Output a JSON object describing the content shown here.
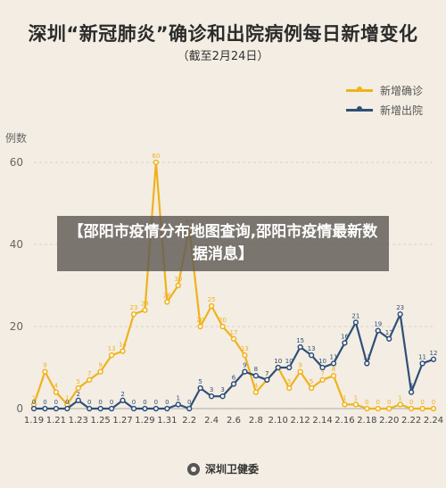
{
  "header": {
    "title": "深圳“新冠肺炎”确诊和出院病例每日新增变化",
    "subtitle": "（截至2月24日）"
  },
  "banner": {
    "text": "【邵阳市疫情分布地图查询,邵阳市疫情最新数据消息】"
  },
  "footer": {
    "source": "深圳卫健委",
    "logo_icon": "shenzhen-health-logo-icon"
  },
  "chart_data": {
    "type": "line",
    "title": "深圳“新冠肺炎”确诊和出院病例每日新增变化",
    "subtitle": "（截至2月24日）",
    "ylabel": "例数",
    "xlabel": "",
    "ylim": [
      0,
      60
    ],
    "yticks": [
      0,
      20,
      40,
      60
    ],
    "grid": true,
    "legend_position": "top-right",
    "x": [
      "1.19",
      "1.20",
      "1.21",
      "1.22",
      "1.23",
      "1.24",
      "1.25",
      "1.26",
      "1.27",
      "1.28",
      "1.29",
      "1.30",
      "1.31",
      "2.1",
      "2.2",
      "2.3",
      "2.4",
      "2.5",
      "2.6",
      "2.7",
      "2.8",
      "2.9",
      "2.10",
      "2.11",
      "2.12",
      "2.13",
      "2.14",
      "2.15",
      "2.16",
      "2.17",
      "2.18",
      "2.19",
      "2.20",
      "2.21",
      "2.22",
      "2.23",
      "2.24"
    ],
    "xtick_labels": [
      "1.19",
      "1.21",
      "1.23",
      "1.25",
      "1.27",
      "1.29",
      "1.31",
      "2.2",
      "2.4",
      "2.6",
      "2.8",
      "2.10",
      "2.12",
      "2.14",
      "2.16",
      "2.18",
      "2.20",
      "2.22",
      "2.24"
    ],
    "series": [
      {
        "name": "新增确诊",
        "color": "#f0b21c",
        "values": [
          1,
          9,
          4,
          1,
          5,
          7,
          9,
          13,
          14,
          23,
          24,
          60,
          26,
          30,
          44,
          20,
          25,
          20,
          17,
          13,
          4,
          7,
          10,
          5,
          9,
          5,
          7,
          8,
          1,
          1,
          0,
          0,
          0,
          1,
          0,
          0,
          0
        ]
      },
      {
        "name": "新增出院",
        "color": "#2f4f78",
        "values": [
          0,
          0,
          0,
          0,
          2,
          0,
          0,
          0,
          2,
          0,
          0,
          0,
          0,
          1,
          0,
          5,
          3,
          3,
          6,
          9,
          8,
          7,
          10,
          10,
          15,
          13,
          10,
          11,
          16,
          21,
          11,
          19,
          17,
          23,
          4,
          11,
          12
        ]
      }
    ]
  }
}
